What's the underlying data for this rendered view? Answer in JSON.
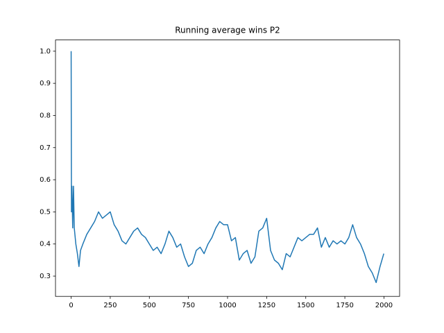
{
  "chart_data": {
    "type": "line",
    "title": "Running average wins P2",
    "series": [
      {
        "color": "#1f77b4",
        "x": [
          0,
          2,
          5,
          10,
          15,
          20,
          30,
          40,
          50,
          60,
          75,
          100,
          125,
          150,
          175,
          200,
          225,
          250,
          275,
          300,
          325,
          350,
          375,
          400,
          425,
          450,
          475,
          500,
          525,
          550,
          575,
          600,
          625,
          650,
          675,
          700,
          725,
          750,
          775,
          800,
          825,
          850,
          875,
          900,
          925,
          950,
          975,
          1000,
          1025,
          1050,
          1075,
          1100,
          1125,
          1150,
          1175,
          1200,
          1225,
          1250,
          1275,
          1300,
          1325,
          1350,
          1375,
          1400,
          1425,
          1450,
          1475,
          1500,
          1525,
          1550,
          1575,
          1600,
          1625,
          1650,
          1675,
          1700,
          1725,
          1750,
          1775,
          1800,
          1825,
          1850,
          1875,
          1900,
          1925,
          1950,
          1975,
          1999
        ],
        "values": [
          1.0,
          0.5,
          0.58,
          0.45,
          0.58,
          0.45,
          0.4,
          0.37,
          0.33,
          0.38,
          0.4,
          0.43,
          0.45,
          0.47,
          0.5,
          0.48,
          0.49,
          0.5,
          0.46,
          0.44,
          0.41,
          0.4,
          0.42,
          0.44,
          0.45,
          0.43,
          0.42,
          0.4,
          0.38,
          0.39,
          0.37,
          0.4,
          0.44,
          0.42,
          0.39,
          0.4,
          0.36,
          0.33,
          0.34,
          0.38,
          0.39,
          0.37,
          0.4,
          0.42,
          0.45,
          0.47,
          0.46,
          0.46,
          0.41,
          0.42,
          0.35,
          0.37,
          0.38,
          0.34,
          0.36,
          0.44,
          0.45,
          0.48,
          0.38,
          0.35,
          0.34,
          0.32,
          0.37,
          0.36,
          0.39,
          0.42,
          0.41,
          0.42,
          0.43,
          0.43,
          0.45,
          0.39,
          0.42,
          0.39,
          0.41,
          0.4,
          0.41,
          0.4,
          0.42,
          0.46,
          0.42,
          0.4,
          0.37,
          0.33,
          0.31,
          0.28,
          0.33,
          0.37
        ]
      }
    ],
    "xlim": [
      -100,
      2100
    ],
    "xticks": [
      0,
      250,
      500,
      750,
      1000,
      1250,
      1500,
      1750,
      2000
    ],
    "ylim": [
      0.237,
      1.035
    ],
    "yticks": [
      0.3,
      0.4,
      0.5,
      0.6,
      0.7,
      0.8,
      0.9,
      {
        "value": 1.0,
        "label": "1.0"
      }
    ]
  }
}
